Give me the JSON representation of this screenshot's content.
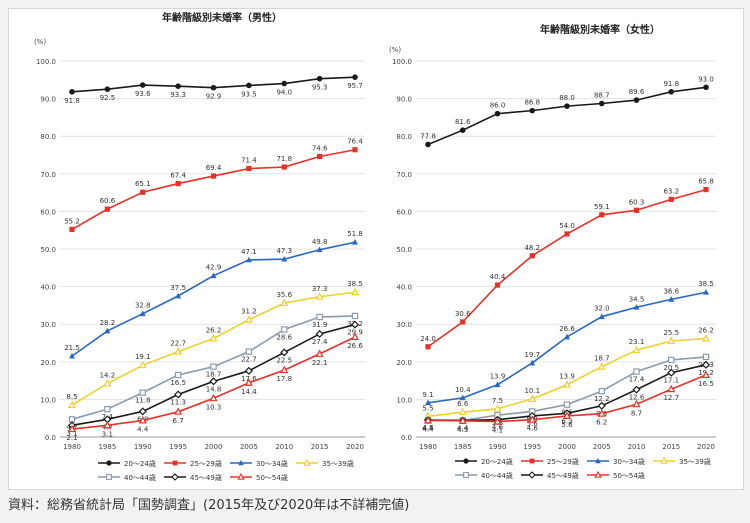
{
  "source_note": "資料：総務省統計局「国勢調査」(2015年及び2020年は不詳補完値)",
  "chart_data": [
    {
      "type": "line",
      "title": "年齢階級別未婚率（男性）",
      "ylabel": "(%)",
      "ylim": [
        0,
        100
      ],
      "yticks": [
        "0.0",
        "10.0",
        "20.0",
        "30.0",
        "40.0",
        "50.0",
        "60.0",
        "70.0",
        "80.0",
        "90.0",
        "100.0"
      ],
      "x": [
        "1980",
        "1985",
        "1990",
        "1995",
        "2000",
        "2005",
        "2010",
        "2015",
        "2020"
      ],
      "grid": true,
      "series": [
        {
          "name": "20〜24歳",
          "color": "#1a1a1a",
          "marker": "circle",
          "values": [
            91.8,
            92.5,
            93.6,
            93.3,
            92.9,
            93.5,
            94.0,
            95.3,
            95.7
          ],
          "labels": [
            "91.8",
            "92.5",
            "93.6",
            "93.3",
            "92.9",
            "93.5",
            "94.0",
            "95.3",
            "95.7"
          ]
        },
        {
          "name": "25〜29歳",
          "color": "#e53228",
          "marker": "square",
          "values": [
            55.2,
            60.6,
            65.1,
            67.4,
            69.4,
            71.4,
            71.8,
            74.6,
            76.4
          ],
          "labels": [
            "55.2",
            "60.6",
            "65.1",
            "67.4",
            "69.4",
            "71.4",
            "71.8",
            "74.6",
            "76.4"
          ]
        },
        {
          "name": "30〜34歳",
          "color": "#2a66c4",
          "marker": "triangle",
          "values": [
            21.5,
            28.2,
            32.8,
            37.5,
            42.9,
            47.1,
            47.3,
            49.8,
            51.8
          ],
          "labels": [
            "21.5",
            "28.2",
            "32.8",
            "37.5",
            "42.9",
            "47.1",
            "47.3",
            "49.8",
            "51.8"
          ]
        },
        {
          "name": "35〜39歳",
          "color": "#f0d02e",
          "marker": "hollow-triangle",
          "values": [
            8.5,
            14.2,
            19.1,
            22.7,
            26.2,
            31.2,
            35.6,
            37.3,
            38.5
          ],
          "labels": [
            "8.5",
            "14.2",
            "19.1",
            "22.7",
            "26.2",
            "31.2",
            "35.6",
            "37.3",
            "38.5"
          ]
        },
        {
          "name": "40〜44歳",
          "color": "#8c9aad",
          "marker": "hollow-square",
          "values": [
            4.7,
            7.4,
            11.8,
            16.5,
            18.7,
            22.7,
            28.6,
            31.9,
            32.2
          ],
          "labels": [
            "4.7",
            "7.4",
            "11.8",
            "16.5",
            "18.7",
            "22.7",
            "28.6",
            "31.9",
            "32.2"
          ]
        },
        {
          "name": "45〜49歳",
          "color": "#1a1a1a",
          "marker": "hollow-diamond",
          "values": [
            3.1,
            4.7,
            6.8,
            11.3,
            14.8,
            17.6,
            22.5,
            27.4,
            29.9
          ],
          "labels": [
            "3.1",
            "4.7",
            "6.8",
            "11.3",
            "14.8",
            "17.6",
            "22.5",
            "27.4",
            "29.9"
          ]
        },
        {
          "name": "50〜54歳",
          "color": "#e53228",
          "marker": "hollow-triangle",
          "values": [
            2.1,
            3.1,
            4.4,
            6.7,
            10.3,
            14.4,
            17.8,
            22.1,
            26.6
          ],
          "labels": [
            "2.1",
            "3.1",
            "4.4",
            "6.7",
            "10.3",
            "14.4",
            "17.8",
            "22.1",
            "26.6"
          ]
        }
      ]
    },
    {
      "type": "line",
      "title": "年齢階級別未婚率（女性）",
      "ylabel": "(%)",
      "ylim": [
        0,
        100
      ],
      "yticks": [
        "0.0",
        "10.0",
        "20.0",
        "30.0",
        "40.0",
        "50.0",
        "60.0",
        "70.0",
        "80.0",
        "90.0",
        "100.0"
      ],
      "x": [
        "1980",
        "1985",
        "1990",
        "1995",
        "2000",
        "2005",
        "2010",
        "2015",
        "2020"
      ],
      "grid": true,
      "series": [
        {
          "name": "20〜24歳",
          "color": "#1a1a1a",
          "marker": "circle",
          "values": [
            77.8,
            81.6,
            86.0,
            86.8,
            88.0,
            88.7,
            89.6,
            91.8,
            93.0
          ],
          "labels": [
            "77.8",
            "81.6",
            "86.0",
            "86.8",
            "88.0",
            "88.7",
            "89.6",
            "91.8",
            "93.0"
          ]
        },
        {
          "name": "25〜29歳",
          "color": "#e53228",
          "marker": "square",
          "values": [
            24.0,
            30.6,
            40.4,
            48.2,
            54.0,
            59.1,
            60.3,
            63.2,
            65.8
          ],
          "labels": [
            "24.0",
            "30.6",
            "40.4",
            "48.2",
            "54.0",
            "59.1",
            "60.3",
            "63.2",
            "65.8"
          ]
        },
        {
          "name": "30〜34歳",
          "color": "#2a66c4",
          "marker": "triangle",
          "values": [
            9.1,
            10.4,
            13.9,
            19.7,
            26.6,
            32.0,
            34.5,
            36.6,
            38.5
          ],
          "labels": [
            "9.1",
            "10.4",
            "13.9",
            "19.7",
            "26.6",
            "32.0",
            "34.5",
            "36.6",
            "38.5"
          ]
        },
        {
          "name": "35〜39歳",
          "color": "#f0d02e",
          "marker": "hollow-triangle",
          "values": [
            5.5,
            6.6,
            7.5,
            10.1,
            13.9,
            18.7,
            23.1,
            25.5,
            26.2
          ],
          "labels": [
            "5.5",
            "6.6",
            "7.5",
            "10.1",
            "13.9",
            "18.7",
            "23.1",
            "25.5",
            "26.2"
          ]
        },
        {
          "name": "40〜44歳",
          "color": "#8c9aad",
          "marker": "hollow-square",
          "values": [
            4.4,
            4.4,
            5.8,
            6.8,
            8.6,
            12.2,
            17.4,
            20.5,
            21.3
          ],
          "labels": [
            "4.4",
            "4.4",
            "5.8",
            "6.8",
            "8.6",
            "12.2",
            "17.4",
            "20.5",
            "21.3"
          ]
        },
        {
          "name": "45〜49歳",
          "color": "#1a1a1a",
          "marker": "hollow-diamond",
          "values": [
            4.5,
            4.4,
            4.6,
            5.6,
            6.3,
            8.3,
            12.6,
            17.1,
            19.2
          ],
          "labels": [
            "4.5",
            "4.4",
            "4.6",
            "5.6",
            "6.3",
            "8.3",
            "12.6",
            "17.1",
            "19.2"
          ]
        },
        {
          "name": "50〜54歳",
          "color": "#e53228",
          "marker": "hollow-triangle",
          "values": [
            4.4,
            4.3,
            4.1,
            4.6,
            5.6,
            6.2,
            8.7,
            12.7,
            16.5
          ],
          "labels": [
            "4.4",
            "4.3",
            "4.1",
            "4.6",
            "5.6",
            "6.2",
            "8.7",
            "12.7",
            "16.5"
          ]
        }
      ]
    }
  ]
}
